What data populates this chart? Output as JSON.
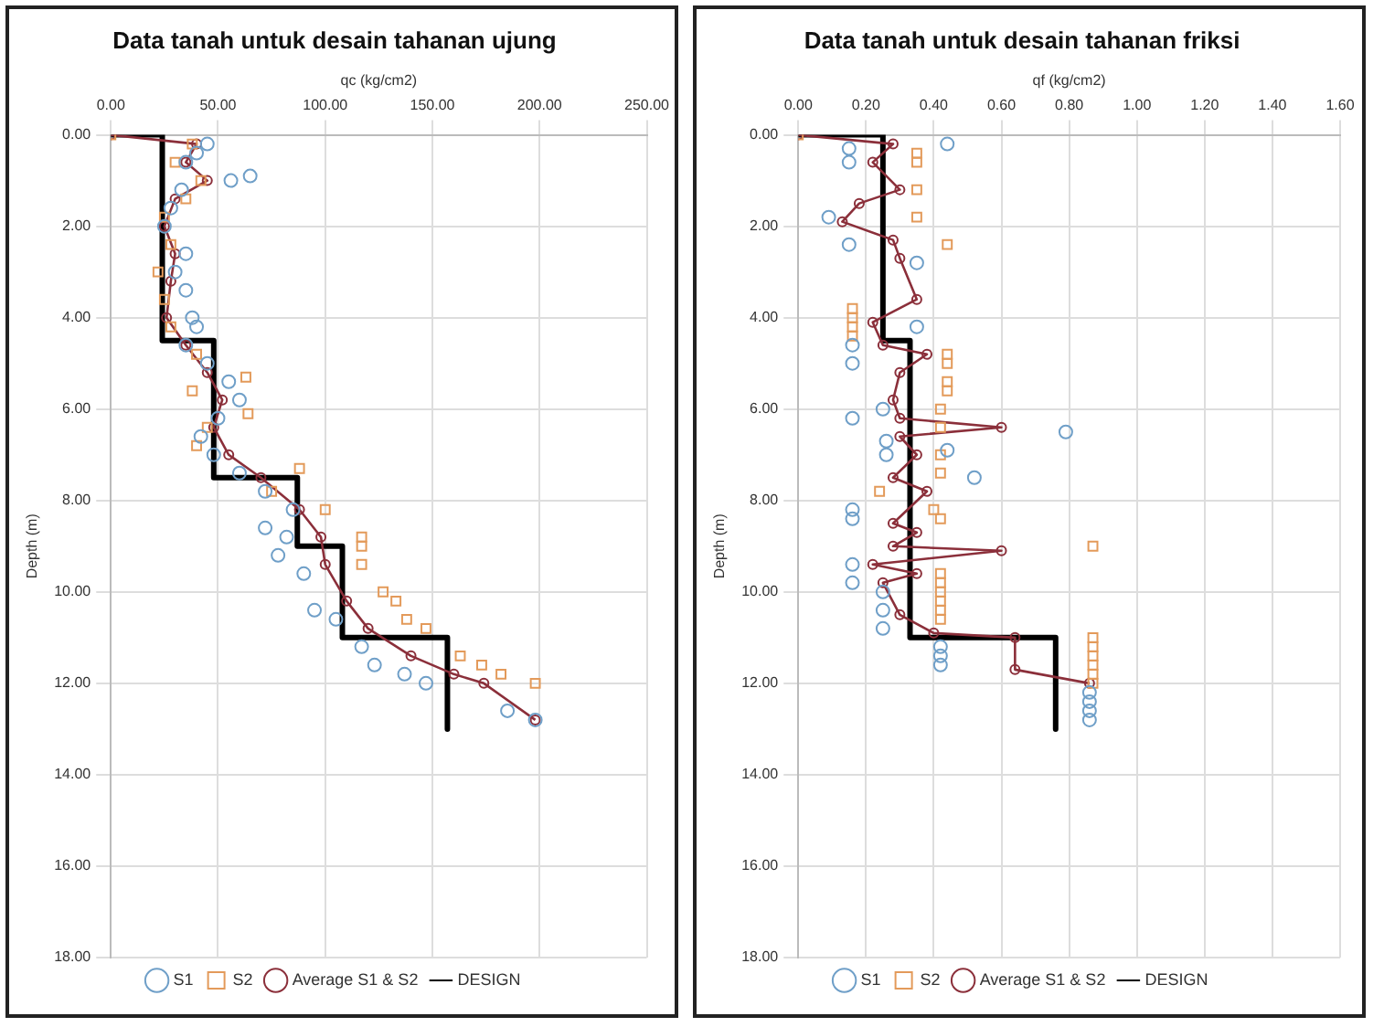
{
  "chart_data": [
    {
      "type": "scatter",
      "title": "Data tanah untuk desain tahanan ujung",
      "xlabel": "qc (kg/cm2)",
      "ylabel": "Depth (m)",
      "grid": true,
      "legend": "bottom",
      "xlim": [
        0,
        250
      ],
      "xticks": [
        {
          "value": 0,
          "label": "0.00"
        },
        {
          "value": 50,
          "label": "50.00"
        },
        {
          "value": 100,
          "label": "100.00"
        },
        {
          "value": 150,
          "label": "150.00"
        },
        {
          "value": 200,
          "label": "200.00"
        },
        {
          "value": 250,
          "label": "250.00"
        }
      ],
      "ylim": [
        18,
        0
      ],
      "yticks": [
        {
          "value": 0,
          "label": "0.00"
        },
        {
          "value": 2,
          "label": "2.00"
        },
        {
          "value": 4,
          "label": "4.00"
        },
        {
          "value": 6,
          "label": "6.00"
        },
        {
          "value": 8,
          "label": "8.00"
        },
        {
          "value": 10,
          "label": "10.00"
        },
        {
          "value": 12,
          "label": "12.00"
        },
        {
          "value": 14,
          "label": "14.00"
        },
        {
          "value": 16,
          "label": "16.00"
        },
        {
          "value": 18,
          "label": "18.00"
        }
      ],
      "series": [
        {
          "name": "S1",
          "color": "#6f9fc8",
          "marker": "circle",
          "x": [
            45,
            40,
            35,
            65,
            56,
            33,
            28,
            25,
            35,
            30,
            35,
            38,
            40,
            35,
            45,
            55,
            60,
            50,
            42,
            48,
            60,
            72,
            85,
            72,
            82,
            78,
            90,
            95,
            105,
            117,
            123,
            137,
            147,
            185,
            198
          ],
          "values": [
            0.2,
            0.4,
            0.6,
            0.9,
            1.0,
            1.2,
            1.6,
            2.0,
            2.6,
            3.0,
            3.4,
            4.0,
            4.2,
            4.6,
            5.0,
            5.4,
            5.8,
            6.2,
            6.6,
            7.0,
            7.4,
            7.8,
            8.2,
            8.6,
            8.8,
            9.2,
            9.6,
            10.4,
            10.6,
            11.2,
            11.6,
            11.8,
            12.0,
            12.6,
            12.8
          ]
        },
        {
          "name": "S2",
          "color": "#e39a5a",
          "marker": "square",
          "x": [
            0,
            38,
            30,
            42,
            35,
            25,
            28,
            22,
            25,
            28,
            40,
            63,
            38,
            64,
            45,
            40,
            88,
            75,
            100,
            117,
            117,
            117,
            127,
            133,
            138,
            147,
            163,
            173,
            182,
            198
          ],
          "values": [
            0,
            0.2,
            0.6,
            1.0,
            1.4,
            1.8,
            2.4,
            3.0,
            3.6,
            4.2,
            4.8,
            5.3,
            5.6,
            6.1,
            6.4,
            6.8,
            7.3,
            7.8,
            8.2,
            8.8,
            9.0,
            9.4,
            10.0,
            10.2,
            10.6,
            10.8,
            11.4,
            11.6,
            11.8,
            12.0
          ]
        },
        {
          "name": "Average S1 & S2",
          "type": "line",
          "color": "#8b2f3a",
          "marker": "circle",
          "x": [
            0,
            40,
            35,
            45,
            30,
            25,
            30,
            28,
            26,
            35,
            45,
            52,
            48,
            55,
            70,
            88,
            98,
            100,
            110,
            120,
            140,
            160,
            174,
            198
          ],
          "values": [
            0,
            0.2,
            0.6,
            1.0,
            1.4,
            2.0,
            2.6,
            3.2,
            4.0,
            4.6,
            5.2,
            5.8,
            6.4,
            7.0,
            7.5,
            8.2,
            8.8,
            9.4,
            10.2,
            10.8,
            11.4,
            11.8,
            12.0,
            12.8
          ]
        },
        {
          "name": "DESIGN",
          "type": "line",
          "color": "#000000",
          "marker": "none",
          "x": [
            0,
            24,
            24,
            48,
            48,
            87,
            87,
            108,
            108,
            157,
            157
          ],
          "values": [
            0,
            0,
            4.5,
            4.5,
            7.5,
            7.5,
            9,
            9,
            11,
            11,
            13
          ]
        }
      ]
    },
    {
      "type": "scatter",
      "title": "Data tanah untuk desain tahanan friksi",
      "xlabel": "qf (kg/cm2)",
      "ylabel": "Depth (m)",
      "grid": true,
      "legend": "bottom",
      "xlim": [
        0,
        1.6
      ],
      "xticks": [
        {
          "value": 0,
          "label": "0.00"
        },
        {
          "value": 0.2,
          "label": "0.20"
        },
        {
          "value": 0.4,
          "label": "0.40"
        },
        {
          "value": 0.6,
          "label": "0.60"
        },
        {
          "value": 0.8,
          "label": "0.80"
        },
        {
          "value": 1.0,
          "label": "1.00"
        },
        {
          "value": 1.2,
          "label": "1.20"
        },
        {
          "value": 1.4,
          "label": "1.40"
        },
        {
          "value": 1.6,
          "label": "1.60"
        }
      ],
      "ylim": [
        18,
        0
      ],
      "yticks": [
        {
          "value": 0,
          "label": "0.00"
        },
        {
          "value": 2,
          "label": "2.00"
        },
        {
          "value": 4,
          "label": "4.00"
        },
        {
          "value": 6,
          "label": "6.00"
        },
        {
          "value": 8,
          "label": "8.00"
        },
        {
          "value": 10,
          "label": "10.00"
        },
        {
          "value": 12,
          "label": "12.00"
        },
        {
          "value": 14,
          "label": "14.00"
        },
        {
          "value": 16,
          "label": "16.00"
        },
        {
          "value": 18,
          "label": "18.00"
        }
      ],
      "series": [
        {
          "name": "S1",
          "color": "#6f9fc8",
          "marker": "circle",
          "x": [
            0.44,
            0.15,
            0.15,
            0.09,
            0.15,
            0.35,
            0.35,
            0.16,
            0.16,
            0.25,
            0.16,
            0.79,
            0.26,
            0.44,
            0.26,
            0.52,
            0.16,
            0.16,
            0.16,
            0.16,
            0.25,
            0.25,
            0.25,
            0.42,
            0.42,
            0.42,
            0.86,
            0.86,
            0.86,
            0.86
          ],
          "values": [
            0.2,
            0.3,
            0.6,
            1.8,
            2.4,
            2.8,
            4.2,
            4.6,
            5.0,
            6.0,
            6.2,
            6.5,
            6.7,
            6.9,
            7.0,
            7.5,
            8.2,
            8.4,
            9.4,
            9.8,
            10.0,
            10.4,
            10.8,
            11.2,
            11.4,
            11.6,
            12.2,
            12.4,
            12.6,
            12.8
          ]
        },
        {
          "name": "S2",
          "color": "#e39a5a",
          "marker": "square",
          "x": [
            0,
            0.35,
            0.35,
            0.35,
            0.35,
            0.44,
            0.16,
            0.16,
            0.16,
            0.16,
            0.44,
            0.44,
            0.44,
            0.44,
            0.42,
            0.42,
            0.42,
            0.42,
            0.24,
            0.4,
            0.42,
            0.87,
            0.42,
            0.42,
            0.42,
            0.42,
            0.42,
            0.42,
            0.87,
            0.87,
            0.87,
            0.87,
            0.87,
            0.87
          ],
          "values": [
            0,
            0.4,
            0.6,
            1.2,
            1.8,
            2.4,
            3.8,
            4.0,
            4.2,
            4.4,
            4.8,
            5.0,
            5.4,
            5.6,
            6.0,
            6.4,
            7.0,
            7.4,
            7.8,
            8.2,
            8.4,
            9.0,
            9.6,
            9.8,
            10.0,
            10.2,
            10.4,
            10.6,
            11.0,
            11.2,
            11.4,
            11.6,
            11.8,
            12.0
          ]
        },
        {
          "name": "Average S1 & S2",
          "type": "line",
          "color": "#8b2f3a",
          "marker": "circle",
          "x": [
            0,
            0.28,
            0.22,
            0.3,
            0.18,
            0.13,
            0.28,
            0.3,
            0.35,
            0.22,
            0.25,
            0.38,
            0.3,
            0.28,
            0.3,
            0.6,
            0.3,
            0.35,
            0.28,
            0.38,
            0.28,
            0.35,
            0.28,
            0.6,
            0.22,
            0.35,
            0.25,
            0.3,
            0.4,
            0.64,
            0.64,
            0.86
          ],
          "values": [
            0,
            0.2,
            0.6,
            1.2,
            1.5,
            1.9,
            2.3,
            2.7,
            3.6,
            4.1,
            4.6,
            4.8,
            5.2,
            5.8,
            6.2,
            6.4,
            6.6,
            7.0,
            7.5,
            7.8,
            8.5,
            8.7,
            9.0,
            9.1,
            9.4,
            9.6,
            9.8,
            10.5,
            10.9,
            11.0,
            11.7,
            12.0
          ]
        },
        {
          "name": "DESIGN",
          "type": "line",
          "color": "#000000",
          "marker": "none",
          "x": [
            0,
            0.25,
            0.25,
            0.33,
            0.33,
            0.76,
            0.76
          ],
          "values": [
            0,
            0,
            4.5,
            4.5,
            11,
            11,
            13
          ]
        }
      ]
    }
  ]
}
